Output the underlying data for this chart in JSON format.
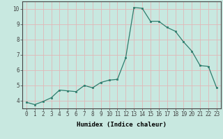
{
  "x": [
    0,
    1,
    2,
    3,
    4,
    5,
    6,
    7,
    8,
    9,
    10,
    11,
    12,
    13,
    14,
    15,
    16,
    17,
    18,
    19,
    20,
    21,
    22,
    23
  ],
  "y": [
    3.9,
    3.75,
    3.95,
    4.2,
    4.7,
    4.65,
    4.6,
    5.0,
    4.85,
    5.2,
    5.35,
    5.4,
    6.8,
    10.1,
    10.05,
    9.2,
    9.2,
    8.8,
    8.55,
    7.85,
    7.25,
    6.3,
    6.25,
    4.85
  ],
  "xlabel": "Humidex (Indice chaleur)",
  "ylim": [
    3.5,
    10.5
  ],
  "xlim": [
    -0.5,
    23.5
  ],
  "xticks": [
    0,
    1,
    2,
    3,
    4,
    5,
    6,
    7,
    8,
    9,
    10,
    11,
    12,
    13,
    14,
    15,
    16,
    17,
    18,
    19,
    20,
    21,
    22,
    23
  ],
  "yticks": [
    4,
    5,
    6,
    7,
    8,
    9,
    10
  ],
  "line_color": "#2e7d6d",
  "marker_color": "#2e7d6d",
  "bg_color": "#c8e8e0",
  "grid_color": "#e0b8b8",
  "axis_color": "#444444",
  "tick_label_fontsize": 5.5,
  "xlabel_fontsize": 6.5
}
